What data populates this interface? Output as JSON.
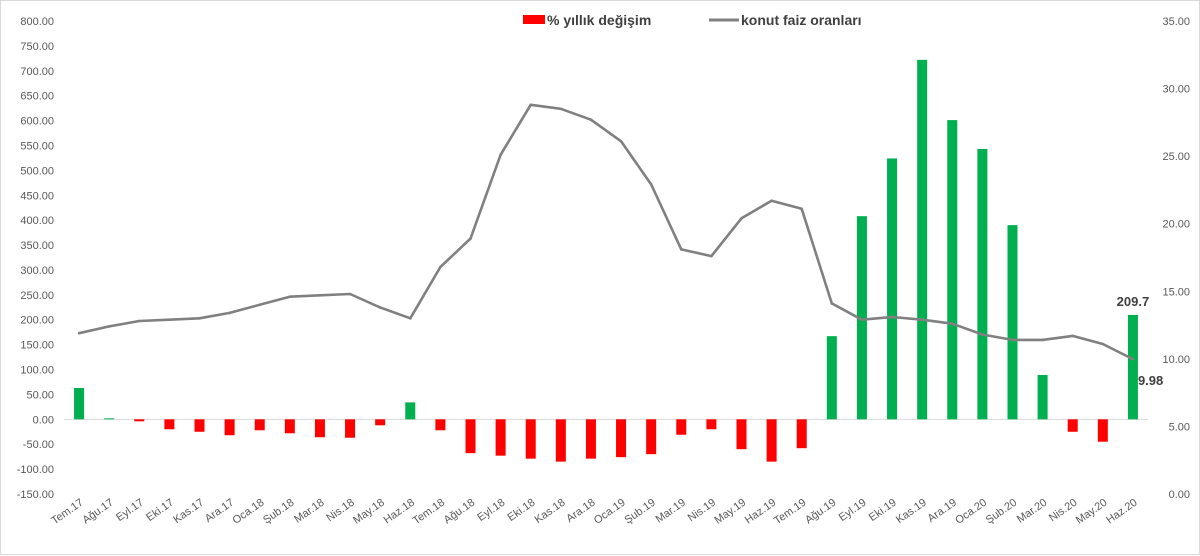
{
  "chart_data": {
    "type": "bar+line",
    "title": "",
    "xlabel": "",
    "ylabel_left": "",
    "ylabel_right": "",
    "categories": [
      "Tem.17",
      "Ağu.17",
      "Eyl.17",
      "Eki.17",
      "Kas.17",
      "Ara.17",
      "Oca.18",
      "Şub.18",
      "Mar.18",
      "Nis.18",
      "May.18",
      "Haz.18",
      "Tem.18",
      "Ağu.18",
      "Eyl.18",
      "Eki.18",
      "Kas.18",
      "Ara.18",
      "Oca.19",
      "Şub.19",
      "Mar.19",
      "Nis.19",
      "May.19",
      "Haz.19",
      "Tem.19",
      "Ağu.19",
      "Eyl.19",
      "Eki.19",
      "Kas.19",
      "Ara.19",
      "Oca.20",
      "Şub.20",
      "Mar.20",
      "Nis.20",
      "May.20",
      "Haz.20"
    ],
    "series": [
      {
        "name": "% yıllık değişim",
        "type": "bar",
        "axis": "left",
        "values": [
          63,
          2,
          -4,
          -20,
          -25,
          -32,
          -22,
          -28,
          -36,
          -37,
          -12,
          34,
          -22,
          -68,
          -73,
          -79,
          -85,
          -79,
          -76,
          -70,
          -31,
          -20,
          -60,
          -85,
          -58,
          167,
          408,
          524,
          722,
          601,
          543,
          390,
          89,
          -25,
          -45,
          209.7
        ],
        "positive_color": "#00b050",
        "negative_color": "#ff0000"
      },
      {
        "name": "konut faiz oranları",
        "type": "line",
        "axis": "right",
        "values": [
          11.9,
          12.4,
          12.8,
          12.9,
          13.0,
          13.4,
          14.0,
          14.6,
          14.7,
          14.8,
          13.8,
          13.0,
          16.8,
          18.9,
          25.1,
          28.8,
          28.5,
          27.7,
          26.1,
          22.9,
          18.1,
          17.6,
          20.4,
          21.7,
          21.1,
          14.1,
          12.9,
          13.1,
          12.9,
          12.6,
          11.8,
          11.4,
          11.4,
          11.7,
          11.1,
          9.98
        ],
        "color": "#808080"
      }
    ],
    "left_axis": {
      "ylim": [
        -150,
        800
      ],
      "ticks": [
        800,
        750,
        700,
        650,
        600,
        550,
        500,
        450,
        400,
        350,
        300,
        250,
        200,
        150,
        100,
        50,
        0,
        -50,
        -100,
        -150
      ],
      "tick_labels": [
        "800.00",
        "750.00",
        "700.00",
        "650.00",
        "600.00",
        "550.00",
        "500.00",
        "450.00",
        "400.00",
        "350.00",
        "300.00",
        "250.00",
        "200.00",
        "150.00",
        "100.00",
        "50.00",
        "0.00",
        "-50.00",
        "-100.00",
        "-150.00"
      ]
    },
    "right_axis": {
      "ylim": [
        0,
        35
      ],
      "ticks": [
        35,
        30,
        25,
        20,
        15,
        10,
        5,
        0
      ],
      "tick_labels": [
        "35.00",
        "30.00",
        "25.00",
        "20.00",
        "15.00",
        "10.00",
        "5.00",
        "0.00"
      ]
    },
    "data_labels": [
      {
        "series": "% yıllık değişim",
        "category": "Haz.20",
        "text": "209.7"
      },
      {
        "series": "konut faiz oranları",
        "category": "Haz.20",
        "text": "9.98"
      }
    ],
    "legend": {
      "position": "top-center",
      "entries": [
        "% yıllık değişim",
        "konut faiz oranları"
      ]
    },
    "grid": false
  }
}
